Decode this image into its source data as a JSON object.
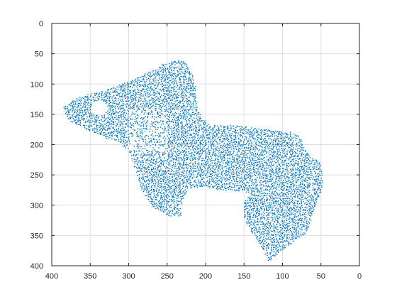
{
  "figure": {
    "background": "#ffffff",
    "axes_color": "#262626",
    "grid_color": "#dfdfdf",
    "marker_color": "#0072bd"
  },
  "chart_data": {
    "type": "scatter",
    "title": "",
    "xlabel": "",
    "ylabel": "",
    "xlim": [
      0,
      400
    ],
    "ylim": [
      0,
      400
    ],
    "x_reversed": true,
    "y_reversed": true,
    "grid": true,
    "xticks": [
      400,
      350,
      300,
      250,
      200,
      150,
      100,
      50,
      0
    ],
    "yticks": [
      0,
      50,
      100,
      150,
      200,
      250,
      300,
      350,
      400
    ],
    "marker": "dot",
    "series": [
      {
        "color": "#0072bd",
        "region_outline": [
          [
            385,
            140
          ],
          [
            372,
            125
          ],
          [
            355,
            118
          ],
          [
            330,
            110
          ],
          [
            300,
            95
          ],
          [
            270,
            78
          ],
          [
            255,
            67
          ],
          [
            238,
            60
          ],
          [
            228,
            62
          ],
          [
            218,
            82
          ],
          [
            213,
            100
          ],
          [
            212,
            120
          ],
          [
            212,
            135
          ],
          [
            205,
            155
          ],
          [
            195,
            168
          ],
          [
            165,
            168
          ],
          [
            140,
            172
          ],
          [
            110,
            177
          ],
          [
            85,
            180
          ],
          [
            75,
            192
          ],
          [
            70,
            210
          ],
          [
            62,
            222
          ],
          [
            52,
            228
          ],
          [
            48,
            250
          ],
          [
            48,
            275
          ],
          [
            55,
            290
          ],
          [
            60,
            315
          ],
          [
            68,
            345
          ],
          [
            90,
            365
          ],
          [
            110,
            385
          ],
          [
            118,
            393
          ],
          [
            125,
            375
          ],
          [
            140,
            345
          ],
          [
            150,
            322
          ],
          [
            150,
            295
          ],
          [
            140,
            280
          ],
          [
            180,
            275
          ],
          [
            205,
            270
          ],
          [
            222,
            272
          ],
          [
            232,
            300
          ],
          [
            232,
            318
          ],
          [
            248,
            318
          ],
          [
            268,
            305
          ],
          [
            278,
            285
          ],
          [
            286,
            268
          ],
          [
            292,
            240
          ],
          [
            300,
            210
          ],
          [
            315,
            195
          ],
          [
            335,
            188
          ],
          [
            358,
            172
          ],
          [
            378,
            160
          ]
        ],
        "hole_outline": [
          [
            345,
            130
          ],
          [
            335,
            128
          ],
          [
            328,
            134
          ],
          [
            327,
            145
          ],
          [
            335,
            152
          ],
          [
            345,
            150
          ],
          [
            350,
            140
          ]
        ]
      }
    ]
  }
}
